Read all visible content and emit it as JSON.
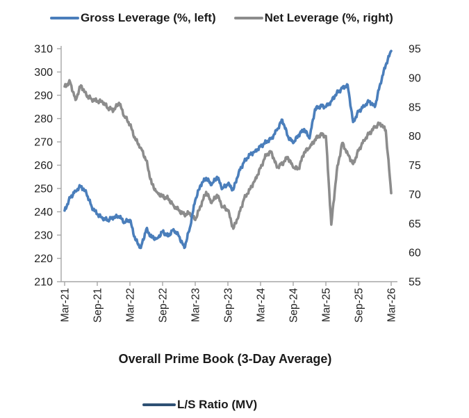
{
  "legend_top": {
    "items": [
      {
        "label": "Gross Leverage (%, left)",
        "color": "#4a7ebb"
      },
      {
        "label": "Net Leverage (%, right)",
        "color": "#8c8c8c"
      }
    ]
  },
  "legend_bottom": {
    "items": [
      {
        "label": "L/S Ratio (MV)",
        "color": "#2e5074"
      }
    ]
  },
  "chart_data": {
    "type": "line",
    "title": "Overall Prime Book (3-Day Average)",
    "grid": false,
    "legend_position": "top",
    "left_axis": {
      "label": "Gross Leverage (%)",
      "min": 210,
      "max": 310,
      "ticks": [
        310,
        300,
        290,
        280,
        270,
        260,
        250,
        240,
        230,
        220,
        210
      ]
    },
    "right_axis": {
      "label": "Net Leverage (%)",
      "min": 55,
      "max": 95,
      "ticks": [
        95,
        90,
        85,
        80,
        75,
        70,
        65,
        60,
        55
      ]
    },
    "x_tick_labels": [
      "Mar-21",
      "Sep-21",
      "Mar-22",
      "Sep-22",
      "Mar-23",
      "Sep-23",
      "Mar-24",
      "Sep-24",
      "Mar-25",
      "Sep-25",
      "Mar-26"
    ],
    "categories": [
      "Mar-21",
      "Apr-21",
      "May-21",
      "Jun-21",
      "Jul-21",
      "Aug-21",
      "Sep-21",
      "Oct-21",
      "Nov-21",
      "Dec-21",
      "Jan-22",
      "Feb-22",
      "Mar-22",
      "Apr-22",
      "May-22",
      "Jun-22",
      "Jul-22",
      "Aug-22",
      "Sep-22",
      "Oct-22",
      "Nov-22",
      "Dec-22",
      "Jan-23",
      "Feb-23",
      "Mar-23",
      "Apr-23",
      "May-23",
      "Jun-23",
      "Jul-23",
      "Aug-23",
      "Sep-23",
      "Oct-23",
      "Nov-23",
      "Dec-23",
      "Jan-24",
      "Feb-24",
      "Mar-24",
      "Apr-24",
      "May-24",
      "Jun-24",
      "Jul-24",
      "Aug-24",
      "Sep-24",
      "Oct-24",
      "Nov-24",
      "Dec-24",
      "Jan-25",
      "Feb-25",
      "Mar-25",
      "Apr-25",
      "May-25",
      "Jun-25",
      "Jul-25",
      "Aug-25",
      "Sep-25",
      "Oct-25",
      "Nov-25",
      "Dec-25",
      "Jan-26",
      "Feb-26",
      "Mar-26"
    ],
    "series": [
      {
        "name": "Gross Leverage (%, left)",
        "axis": "left",
        "color": "#4a7ebb",
        "values": [
          240.5,
          246,
          249,
          251,
          248,
          242,
          239,
          237,
          236.5,
          237.5,
          238,
          235.5,
          236.5,
          228,
          224.5,
          232.5,
          229,
          228.5,
          231.5,
          229.5,
          232.5,
          229.5,
          224.5,
          233,
          245,
          251.5,
          254.5,
          251.5,
          255,
          250,
          252,
          249.5,
          257,
          261.5,
          264.5,
          266,
          268,
          270,
          271.5,
          275,
          279.5,
          272.5,
          269.5,
          273,
          275.5,
          271.5,
          284,
          285.5,
          285,
          287.5,
          291,
          293,
          294.5,
          278.5,
          283,
          285.5,
          287.5,
          285,
          295,
          303,
          309
        ]
      },
      {
        "name": "Net Leverage (%, right)",
        "axis": "right",
        "color": "#8c8c8c",
        "values": [
          88.5,
          89.3,
          86.2,
          88.7,
          87.0,
          86.3,
          86.0,
          85.8,
          84.8,
          84.4,
          85.7,
          83.4,
          82.0,
          79.4,
          78.0,
          75.8,
          71.8,
          70.3,
          69.6,
          69.3,
          68.1,
          67.2,
          66.5,
          66.8,
          65.6,
          68.0,
          70.4,
          68.5,
          69.9,
          67.9,
          67.3,
          64.1,
          66.5,
          69.3,
          70.8,
          72.5,
          74.5,
          76.8,
          77.3,
          74.6,
          75.3,
          76.4,
          74.6,
          74.4,
          77.2,
          78.0,
          79.4,
          80.3,
          80.0,
          64.8,
          74.0,
          78.8,
          77.0,
          75.2,
          77.5,
          79.3,
          80.5,
          81.5,
          82.2,
          81.0,
          70.2
        ]
      }
    ]
  }
}
